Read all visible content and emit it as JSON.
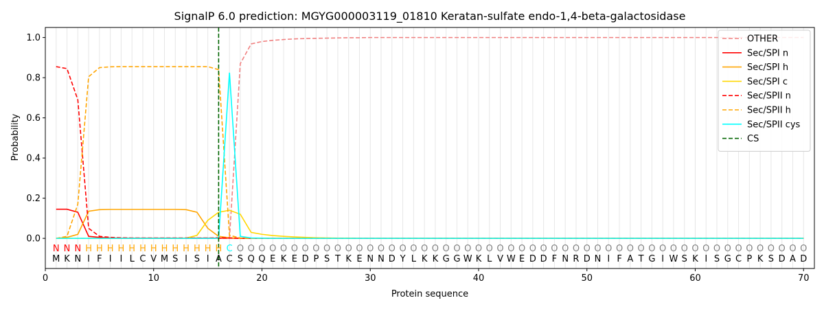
{
  "chart_data": {
    "type": "line",
    "title": "SignalP 6.0 prediction: MGYG000003119_01810 Keratan-sulfate endo-1,4-beta-galactosidase",
    "xlabel": "Protein sequence",
    "ylabel": "Probability",
    "xlim": [
      0,
      71
    ],
    "ylim": [
      -0.15,
      1.05
    ],
    "xticks": [
      0,
      10,
      20,
      30,
      40,
      50,
      60,
      70
    ],
    "yticks": [
      0.0,
      0.2,
      0.4,
      0.6,
      0.8,
      1.0
    ],
    "xtick_labels": [
      "0",
      "10",
      "20",
      "30",
      "40",
      "50",
      "60",
      "70"
    ],
    "ytick_labels": [
      "0.0",
      "0.2",
      "0.4",
      "0.6",
      "0.8",
      "1.0"
    ],
    "grid": "vertical lines at each residue",
    "legend_position": "top-right",
    "sequence": [
      "M",
      "K",
      "N",
      "I",
      "F",
      "I",
      "I",
      "L",
      "C",
      "V",
      "M",
      "S",
      "I",
      "S",
      "I",
      "A",
      "C",
      "S",
      "Q",
      "Q",
      "E",
      "K",
      "E",
      "D",
      "P",
      "S",
      "T",
      "K",
      "E",
      "N",
      "N",
      "D",
      "Y",
      "L",
      "K",
      "K",
      "G",
      "G",
      "W",
      "K",
      "L",
      "V",
      "W",
      "E",
      "D",
      "D",
      "F",
      "N",
      "R",
      "D",
      "N",
      "I",
      "F",
      "A",
      "T",
      "G",
      "I",
      "W",
      "S",
      "K",
      "I",
      "S",
      "G",
      "C",
      "P",
      "K",
      "S",
      "D",
      "A",
      "D"
    ],
    "labels": [
      "N",
      "N",
      "N",
      "H",
      "H",
      "H",
      "H",
      "H",
      "H",
      "H",
      "H",
      "H",
      "H",
      "H",
      "H",
      "H",
      "C",
      "O",
      "O",
      "O",
      "O",
      "O",
      "O",
      "O",
      "O",
      "O",
      "O",
      "O",
      "O",
      "O",
      "O",
      "O",
      "O",
      "O",
      "O",
      "O",
      "O",
      "O",
      "O",
      "O",
      "O",
      "O",
      "O",
      "O",
      "O",
      "O",
      "O",
      "O",
      "O",
      "O",
      "O",
      "O",
      "O",
      "O",
      "O",
      "O",
      "O",
      "O",
      "O",
      "O",
      "O",
      "O",
      "O",
      "O",
      "O",
      "O",
      "O",
      "O",
      "O",
      "O"
    ],
    "label_colors": {
      "N": "#ff0000",
      "H": "#ffa500",
      "C": "#00ffff",
      "O": "#808080"
    },
    "cleavage_site": 16,
    "series": [
      {
        "name": "OTHER",
        "color": "#f08080",
        "dash": "dashed",
        "values": [
          0.0,
          0.0,
          0.0,
          0.0,
          0.0,
          0.0,
          0.0,
          0.0,
          0.0,
          0.0,
          0.0,
          0.0,
          0.0,
          0.0,
          0.0,
          0.0,
          0.0,
          0.87,
          0.968,
          0.98,
          0.986,
          0.99,
          0.993,
          0.995,
          0.996,
          0.997,
          0.998,
          0.999,
          0.999,
          1.0,
          1.0,
          1.0,
          1.0,
          1.0,
          1.0,
          1.0,
          1.0,
          1.0,
          1.0,
          1.0,
          1.0,
          1.0,
          1.0,
          1.0,
          1.0,
          1.0,
          1.0,
          1.0,
          1.0,
          1.0,
          1.0,
          1.0,
          1.0,
          1.0,
          1.0,
          1.0,
          1.0,
          1.0,
          1.0,
          1.0,
          1.0,
          1.0,
          1.0,
          1.0,
          1.0,
          1.0,
          1.0,
          1.0,
          1.0,
          1.0
        ]
      },
      {
        "name": "Sec/SPI n",
        "color": "#ff0000",
        "dash": "solid",
        "values": [
          0.145,
          0.145,
          0.13,
          0.01,
          0.005,
          0.002,
          0.001,
          0.001,
          0.001,
          0.001,
          0.001,
          0.001,
          0.001,
          0.001,
          0.001,
          0.001,
          0.001,
          0.0,
          0.0,
          0.0,
          0.0,
          0.0,
          0.0,
          0.0,
          0.0,
          0.0,
          0.0,
          0.0,
          0.0,
          0.0,
          0.0,
          0.0,
          0.0,
          0.0,
          0.0,
          0.0,
          0.0,
          0.0,
          0.0,
          0.0,
          0.0,
          0.0,
          0.0,
          0.0,
          0.0,
          0.0,
          0.0,
          0.0,
          0.0,
          0.0,
          0.0,
          0.0,
          0.0,
          0.0,
          0.0,
          0.0,
          0.0,
          0.0,
          0.0,
          0.0,
          0.0,
          0.0,
          0.0,
          0.0,
          0.0,
          0.0,
          0.0,
          0.0,
          0.0,
          0.0
        ]
      },
      {
        "name": "Sec/SPI h",
        "color": "#ffa500",
        "dash": "solid",
        "values": [
          0.0,
          0.005,
          0.02,
          0.135,
          0.143,
          0.144,
          0.144,
          0.144,
          0.144,
          0.144,
          0.144,
          0.144,
          0.143,
          0.13,
          0.05,
          0.01,
          0.003,
          0.001,
          0.0,
          0.0,
          0.0,
          0.0,
          0.0,
          0.0,
          0.0,
          0.0,
          0.0,
          0.0,
          0.0,
          0.0,
          0.0,
          0.0,
          0.0,
          0.0,
          0.0,
          0.0,
          0.0,
          0.0,
          0.0,
          0.0,
          0.0,
          0.0,
          0.0,
          0.0,
          0.0,
          0.0,
          0.0,
          0.0,
          0.0,
          0.0,
          0.0,
          0.0,
          0.0,
          0.0,
          0.0,
          0.0,
          0.0,
          0.0,
          0.0,
          0.0,
          0.0,
          0.0,
          0.0,
          0.0,
          0.0,
          0.0,
          0.0,
          0.0,
          0.0,
          0.0
        ]
      },
      {
        "name": "Sec/SPI c",
        "color": "#ffd700",
        "dash": "solid",
        "values": [
          0.0,
          0.0,
          0.0,
          0.0,
          0.0,
          0.0,
          0.0,
          0.0,
          0.0,
          0.0,
          0.0,
          0.0,
          0.001,
          0.015,
          0.09,
          0.13,
          0.14,
          0.12,
          0.03,
          0.02,
          0.014,
          0.01,
          0.007,
          0.005,
          0.003,
          0.002,
          0.001,
          0.001,
          0.0,
          0.0,
          0.0,
          0.0,
          0.0,
          0.0,
          0.0,
          0.0,
          0.0,
          0.0,
          0.0,
          0.0,
          0.0,
          0.0,
          0.0,
          0.0,
          0.0,
          0.0,
          0.0,
          0.0,
          0.0,
          0.0,
          0.0,
          0.0,
          0.0,
          0.0,
          0.0,
          0.0,
          0.0,
          0.0,
          0.0,
          0.0,
          0.0,
          0.0,
          0.0,
          0.0,
          0.0,
          0.0,
          0.0,
          0.0,
          0.0,
          0.0
        ]
      },
      {
        "name": "Sec/SPII n",
        "color": "#ff0000",
        "dash": "dashed",
        "values": [
          0.855,
          0.845,
          0.69,
          0.05,
          0.01,
          0.005,
          0.003,
          0.002,
          0.002,
          0.002,
          0.002,
          0.002,
          0.002,
          0.002,
          0.002,
          0.003,
          0.002,
          0.0,
          0.0,
          0.0,
          0.0,
          0.0,
          0.0,
          0.0,
          0.0,
          0.0,
          0.0,
          0.0,
          0.0,
          0.0,
          0.0,
          0.0,
          0.0,
          0.0,
          0.0,
          0.0,
          0.0,
          0.0,
          0.0,
          0.0,
          0.0,
          0.0,
          0.0,
          0.0,
          0.0,
          0.0,
          0.0,
          0.0,
          0.0,
          0.0,
          0.0,
          0.0,
          0.0,
          0.0,
          0.0,
          0.0,
          0.0,
          0.0,
          0.0,
          0.0,
          0.0,
          0.0,
          0.0,
          0.0,
          0.0,
          0.0,
          0.0,
          0.0,
          0.0,
          0.0
        ]
      },
      {
        "name": "Sec/SPII h",
        "color": "#ffa500",
        "dash": "dashed",
        "values": [
          0.0,
          0.01,
          0.17,
          0.805,
          0.85,
          0.854,
          0.855,
          0.855,
          0.855,
          0.855,
          0.855,
          0.855,
          0.855,
          0.855,
          0.855,
          0.84,
          0.015,
          0.002,
          0.0,
          0.0,
          0.0,
          0.0,
          0.0,
          0.0,
          0.0,
          0.0,
          0.0,
          0.0,
          0.0,
          0.0,
          0.0,
          0.0,
          0.0,
          0.0,
          0.0,
          0.0,
          0.0,
          0.0,
          0.0,
          0.0,
          0.0,
          0.0,
          0.0,
          0.0,
          0.0,
          0.0,
          0.0,
          0.0,
          0.0,
          0.0,
          0.0,
          0.0,
          0.0,
          0.0,
          0.0,
          0.0,
          0.0,
          0.0,
          0.0,
          0.0,
          0.0,
          0.0,
          0.0,
          0.0,
          0.0,
          0.0,
          0.0,
          0.0,
          0.0,
          0.0
        ]
      },
      {
        "name": "Sec/SPII cys",
        "color": "#00ffff",
        "dash": "solid",
        "values": [
          0.0,
          0.0,
          0.0,
          0.0,
          0.0,
          0.0,
          0.0,
          0.0,
          0.0,
          0.0,
          0.0,
          0.0,
          0.0,
          0.0,
          0.0,
          0.0,
          0.825,
          0.01,
          0.002,
          0.001,
          0.0,
          0.0,
          0.0,
          0.0,
          0.0,
          0.0,
          0.0,
          0.0,
          0.0,
          0.0,
          0.0,
          0.0,
          0.0,
          0.0,
          0.0,
          0.0,
          0.0,
          0.0,
          0.0,
          0.0,
          0.0,
          0.0,
          0.0,
          0.0,
          0.0,
          0.0,
          0.0,
          0.0,
          0.0,
          0.0,
          0.0,
          0.0,
          0.0,
          0.0,
          0.0,
          0.0,
          0.0,
          0.0,
          0.0,
          0.0,
          0.0,
          0.0,
          0.0,
          0.0,
          0.0,
          0.0,
          0.0,
          0.0,
          0.0,
          0.0
        ]
      }
    ],
    "legend": [
      {
        "name": "OTHER",
        "color": "#f08080",
        "dash": "dashed"
      },
      {
        "name": "Sec/SPI n",
        "color": "#ff0000",
        "dash": "solid"
      },
      {
        "name": "Sec/SPI h",
        "color": "#ffa500",
        "dash": "solid"
      },
      {
        "name": "Sec/SPI c",
        "color": "#ffd700",
        "dash": "solid"
      },
      {
        "name": "Sec/SPII n",
        "color": "#ff0000",
        "dash": "dashed"
      },
      {
        "name": "Sec/SPII h",
        "color": "#ffa500",
        "dash": "dashed"
      },
      {
        "name": "Sec/SPII cys",
        "color": "#00ffff",
        "dash": "solid"
      },
      {
        "name": "CS",
        "color": "#006400",
        "dash": "dashed"
      }
    ]
  }
}
